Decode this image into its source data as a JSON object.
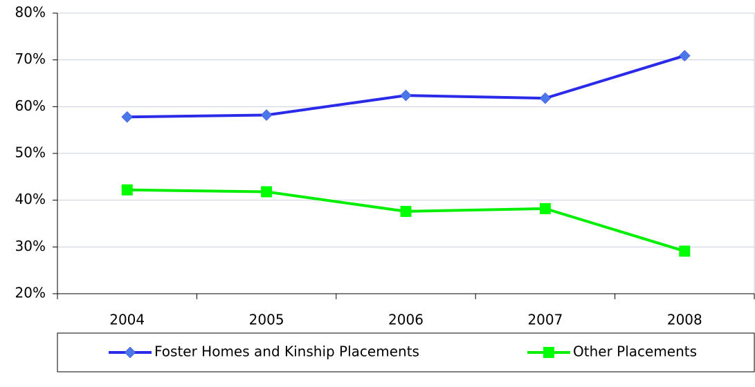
{
  "chart_data": {
    "type": "line",
    "categories": [
      "2004",
      "2005",
      "2006",
      "2007",
      "2008"
    ],
    "series": [
      {
        "name": "Foster Homes and Kinship Placements",
        "color": "#2a2ae8",
        "marker_color": "#4a78e8",
        "marker": "diamond",
        "values": [
          57.8,
          58.2,
          62.4,
          61.8,
          70.9
        ]
      },
      {
        "name": "Other Placements",
        "color": "#00ee00",
        "marker_color": "#00ff00",
        "marker": "square",
        "values": [
          42.2,
          41.8,
          37.6,
          38.2,
          29.1
        ]
      }
    ],
    "ylim": [
      20,
      80
    ],
    "yticks": [
      {
        "value": 20,
        "label": "20%"
      },
      {
        "value": 30,
        "label": "30%"
      },
      {
        "value": 40,
        "label": "40%"
      },
      {
        "value": 50,
        "label": "50%"
      },
      {
        "value": 60,
        "label": "60%"
      },
      {
        "value": 70,
        "label": "70%"
      },
      {
        "value": 80,
        "label": "80%"
      }
    ],
    "grid": true,
    "legend": "bottom"
  }
}
